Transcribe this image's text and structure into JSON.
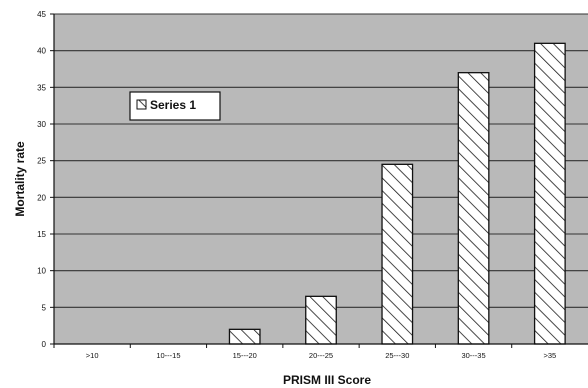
{
  "chart_data": {
    "type": "bar",
    "title": "",
    "xlabel": "PRISM III Score",
    "ylabel": "Mortality rate",
    "categories": [
      ">10",
      "10---15",
      "15---20",
      "20---25",
      "25---30",
      "30---35",
      ">35"
    ],
    "series": [
      {
        "name": "Series 1",
        "values": [
          0,
          0,
          2,
          6.5,
          24.5,
          37,
          41
        ]
      }
    ],
    "ylim": [
      0,
      45
    ],
    "yticks": [
      0,
      5,
      10,
      15,
      20,
      25,
      30,
      35,
      40,
      45
    ],
    "grid": true,
    "legend": {
      "placement": "top-left",
      "label": "Series 1"
    },
    "colors": {
      "plot_background": "#b9b9b9",
      "bar_fill": "#ffffff",
      "bar_hatch": "#1a1a1a",
      "gridline": "#333333"
    }
  }
}
